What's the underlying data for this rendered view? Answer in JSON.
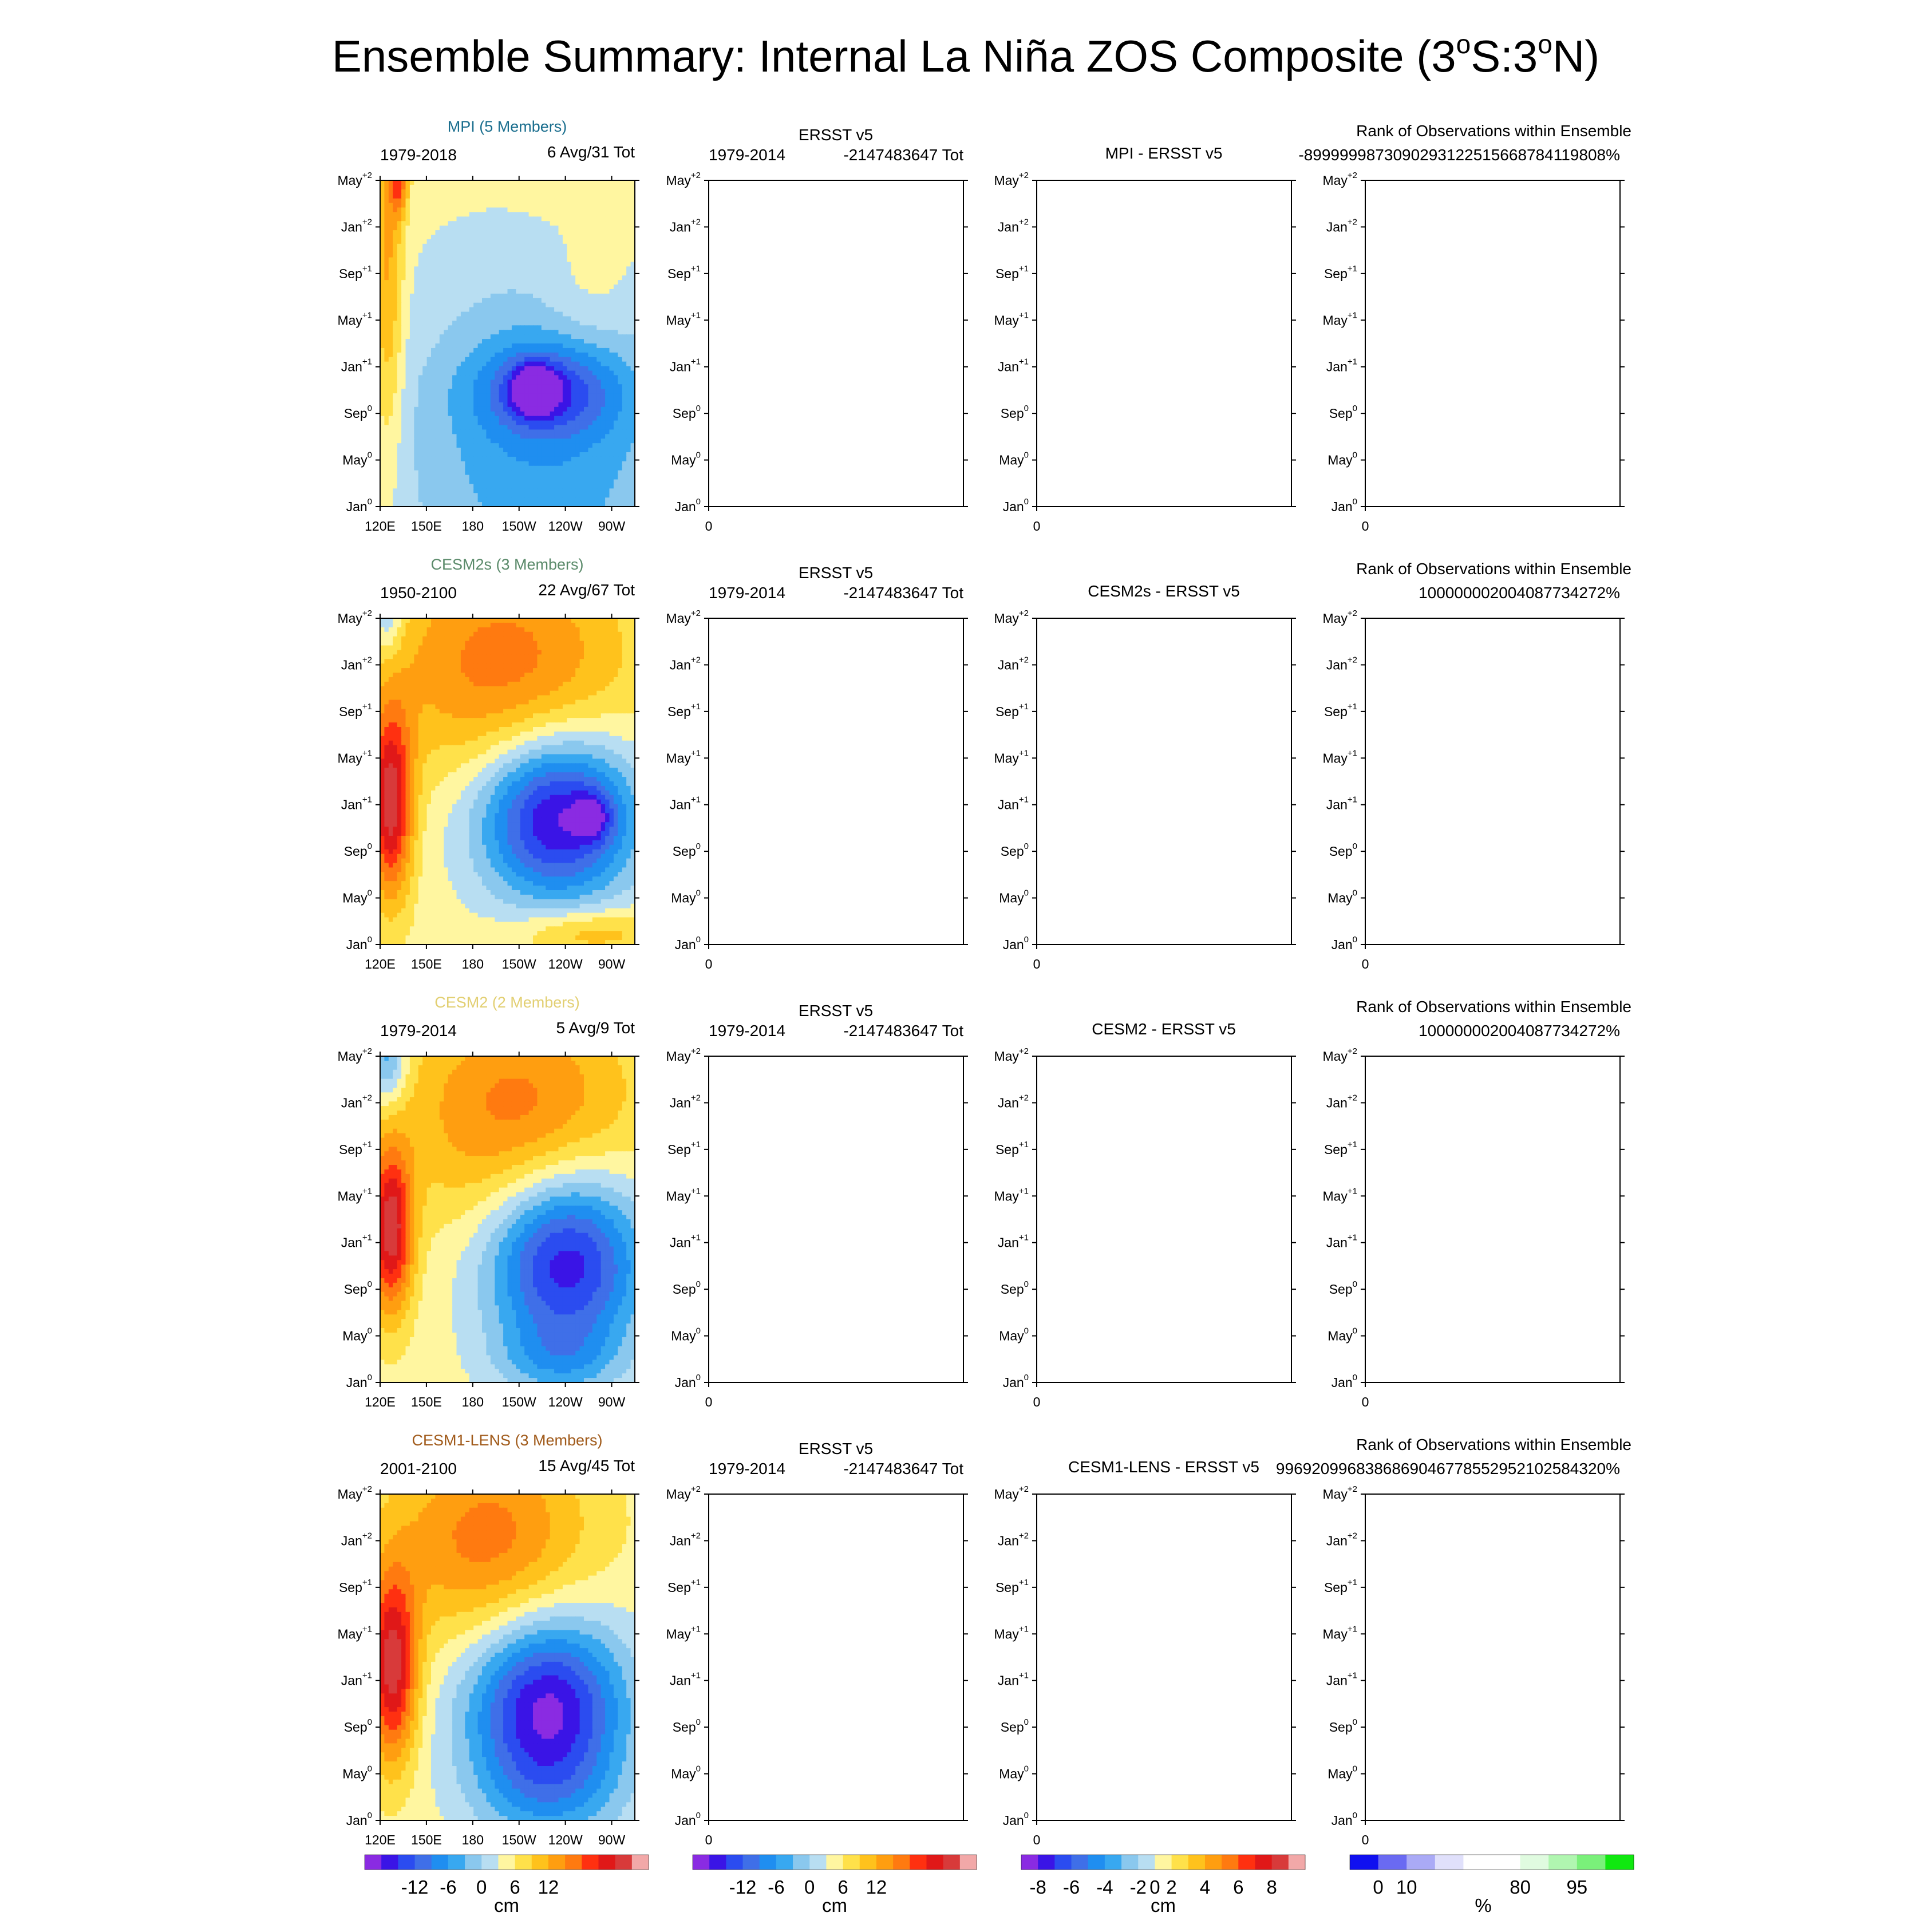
{
  "figure": {
    "title": "Ensemble Summary: Internal La Niña ZOS Composite (3°S:3°N)",
    "title_parts": [
      "Ensemble Summary: Internal La Niña ZOS Composite (3",
      "o",
      "S:3",
      "o",
      "N)"
    ]
  },
  "axes": {
    "y_ticks": [
      {
        "base": "May",
        "sup": "+2"
      },
      {
        "base": "Jan",
        "sup": "+2"
      },
      {
        "base": "Sep",
        "sup": "+1"
      },
      {
        "base": "May",
        "sup": "+1"
      },
      {
        "base": "Jan",
        "sup": "+1"
      },
      {
        "base": "Sep",
        "sup": "0"
      },
      {
        "base": "May",
        "sup": "0"
      },
      {
        "base": "Jan",
        "sup": "0"
      }
    ],
    "x_ticks_lon": [
      "120E",
      "150E",
      "180",
      "150W",
      "120W",
      "90W"
    ],
    "x_tick_zero": "0"
  },
  "rows": [
    {
      "model": {
        "label": "MPI (5 Members)",
        "color": "#1a6e8e",
        "period": "1979-2018",
        "count": "6 Avg/31 Tot"
      },
      "obs": {
        "label": "ERSST v5",
        "period": "1979-2014",
        "count": "-2147483647 Tot"
      },
      "diff": {
        "label": "MPI - ERSST v5"
      },
      "rank": {
        "label": "Rank of Observations within Ensemble",
        "value": "-89999998730902931225156687841198​08%"
      }
    },
    {
      "model": {
        "label": "CESM2s (3 Members)",
        "color": "#5a8a6a",
        "period": "1950-2100",
        "count": "22 Avg/67 Tot"
      },
      "obs": {
        "label": "ERSST v5",
        "period": "1979-2014",
        "count": "-2147483647 Tot"
      },
      "diff": {
        "label": "CESM2s - ERSST v5"
      },
      "rank": {
        "label": "Rank of Observations within Ensemble",
        "value": "1000000020040877342​72%"
      }
    },
    {
      "model": {
        "label": "CESM2 (2 Members)",
        "color": "#e2cf72",
        "period": "1979-2014",
        "count": "5 Avg/9 Tot"
      },
      "obs": {
        "label": "ERSST v5",
        "period": "1979-2014",
        "count": "-2147483647 Tot"
      },
      "diff": {
        "label": "CESM2 - ERSST v5"
      },
      "rank": {
        "label": "Rank of Observations within Ensemble",
        "value": "1000000020040877342​72%"
      }
    },
    {
      "model": {
        "label": "CESM1-LENS (3 Members)",
        "color": "#a05a1a",
        "period": "2001-2100",
        "count": "15 Avg/45 Tot"
      },
      "obs": {
        "label": "ERSST v5",
        "period": "1979-2014",
        "count": "-2147483647 Tot"
      },
      "diff": {
        "label": "CESM1-LENS - ERSST v5"
      },
      "rank": {
        "label": "Rank of Observations within Ensemble",
        "value": "99692099683868690467785529521025843​20%"
      }
    }
  ],
  "colorbars": [
    {
      "colors": [
        "#8a2be2",
        "#3a14e6",
        "#2b4cf0",
        "#3f6fe8",
        "#1f8ef0",
        "#38a8f0",
        "#8ac8ee",
        "#b8def2",
        "#fff6a0",
        "#ffe14a",
        "#ffc21c",
        "#ff9e10",
        "#ff7a10",
        "#ff3010",
        "#e01818",
        "#d83a3a",
        "#f2a8a8"
      ],
      "ticks": [
        "-12",
        "-6",
        "0",
        "6",
        "12"
      ],
      "unit": "cm"
    },
    {
      "colors": [
        "#8a2be2",
        "#3a14e6",
        "#2b4cf0",
        "#3f6fe8",
        "#1f8ef0",
        "#38a8f0",
        "#8ac8ee",
        "#b8def2",
        "#fff6a0",
        "#ffe14a",
        "#ffc21c",
        "#ff9e10",
        "#ff7a10",
        "#ff3010",
        "#e01818",
        "#d83a3a",
        "#f2a8a8"
      ],
      "ticks": [
        "-12",
        "-6",
        "0",
        "6",
        "12"
      ],
      "unit": "cm"
    },
    {
      "colors": [
        "#8a2be2",
        "#3a14e6",
        "#2b4cf0",
        "#3f6fe8",
        "#1f8ef0",
        "#38a8f0",
        "#8ac8ee",
        "#b8def2",
        "#fff6a0",
        "#ffe14a",
        "#ffc21c",
        "#ff9e10",
        "#ff7a10",
        "#ff3010",
        "#e01818",
        "#d83a3a",
        "#f2a8a8"
      ],
      "ticks": [
        "-8",
        "-6",
        "-4",
        "-2",
        "0",
        "2",
        "4",
        "6",
        "8"
      ],
      "unit": "cm"
    },
    {
      "colors": [
        "#1010f0",
        "#6a6af2",
        "#aaaaf6",
        "#e0e0fb",
        "#ffffff",
        "#ffffff",
        "#e0fbe0",
        "#b0f6b0",
        "#7af07a",
        "#10e810"
      ],
      "ticks": [
        "0",
        "10",
        "80",
        "95"
      ],
      "unit": "%"
    }
  ],
  "chart_data": [
    {
      "type": "heatmap",
      "title": "MPI (5 Members)",
      "subtitle": "1979-2018  6 Avg/31 Tot",
      "xlabel": "",
      "ylabel": "",
      "x": [
        "120E",
        "150E",
        "180",
        "150W",
        "120W",
        "90W"
      ],
      "y": [
        "Jan0",
        "May0",
        "Sep0",
        "Jan+1",
        "May+1",
        "Sep+1",
        "Jan+2",
        "May+2"
      ],
      "unit": "cm",
      "blobs": [
        {
          "lon": 125,
          "mon": 20,
          "rx": 10,
          "ry": 16,
          "v": 6
        },
        {
          "lon": 132,
          "mon": 28,
          "rx": 6,
          "ry": 3,
          "v": 8
        },
        {
          "lon": 230,
          "mon": 10,
          "rx": 45,
          "ry": 4,
          "v": -8
        },
        {
          "lon": 220,
          "mon": 10,
          "rx": 14,
          "ry": 2,
          "v": -11
        },
        {
          "lon": 225,
          "mon": 5,
          "rx": 95,
          "ry": 16,
          "v": -6.5
        },
        {
          "lon": 255,
          "mon": 18,
          "rx": 30,
          "ry": 6,
          "v": 2
        },
        {
          "lon": 255,
          "mon": 28.5,
          "rx": 50,
          "ry": 3,
          "v": 1.5
        },
        {
          "lon": 218,
          "mon": 31,
          "rx": 14,
          "ry": 1,
          "v": -3
        }
      ]
    },
    {
      "type": "heatmap",
      "title": "CESM2s (3 Members)",
      "subtitle": "1950-2100  22 Avg/67 Tot",
      "xlabel": "",
      "ylabel": "",
      "x": [
        "120E",
        "150E",
        "180",
        "150W",
        "120W",
        "90W"
      ],
      "y": [
        "Jan0",
        "May0",
        "Sep0",
        "Jan+1",
        "May+1",
        "Sep+1",
        "Jan+2",
        "May+2"
      ],
      "unit": "cm",
      "blobs": [
        {
          "lon": 127,
          "mon": 12,
          "rx": 14,
          "ry": 8,
          "v": 14
        },
        {
          "lon": 200,
          "mon": 24,
          "rx": 80,
          "ry": 10,
          "v": 8
        },
        {
          "lon": 235,
          "mon": 11,
          "rx": 50,
          "ry": 7,
          "v": -16
        },
        {
          "lon": 258,
          "mon": 11,
          "rx": 12,
          "ry": 2,
          "v": -6
        },
        {
          "lon": 255,
          "mon": 1,
          "rx": 45,
          "ry": 2,
          "v": 5
        },
        {
          "lon": 125,
          "mon": 29,
          "rx": 10,
          "ry": 4,
          "v": -6
        }
      ]
    },
    {
      "type": "heatmap",
      "title": "CESM2 (2 Members)",
      "subtitle": "1979-2014  5 Avg/9 Tot",
      "xlabel": "",
      "ylabel": "",
      "x": [
        "120E",
        "150E",
        "180",
        "150W",
        "120W",
        "90W"
      ],
      "y": [
        "Jan0",
        "May0",
        "Sep0",
        "Jan+1",
        "May+1",
        "Sep+1",
        "Jan+2",
        "May+2"
      ],
      "unit": "cm",
      "blobs": [
        {
          "lon": 127,
          "mon": 13,
          "rx": 14,
          "ry": 7,
          "v": 14
        },
        {
          "lon": 210,
          "mon": 23,
          "rx": 75,
          "ry": 10,
          "v": 8
        },
        {
          "lon": 240,
          "mon": 10.5,
          "rx": 50,
          "ry": 8,
          "v": -15
        },
        {
          "lon": 125,
          "mon": 28,
          "rx": 12,
          "ry": 4,
          "v": -7
        },
        {
          "lon": 235,
          "mon": 2,
          "rx": 40,
          "ry": 3,
          "v": -4
        }
      ]
    },
    {
      "type": "heatmap",
      "title": "CESM1-LENS (3 Members)",
      "subtitle": "2001-2100  15 Avg/45 Tot",
      "xlabel": "",
      "ylabel": "",
      "x": [
        "120E",
        "150E",
        "180",
        "150W",
        "120W",
        "90W"
      ],
      "y": [
        "Jan0",
        "May0",
        "Sep0",
        "Jan+1",
        "May+1",
        "Sep+1",
        "Jan+2",
        "May+2"
      ],
      "unit": "cm",
      "blobs": [
        {
          "lon": 128,
          "mon": 13,
          "rx": 16,
          "ry": 8,
          "v": 14
        },
        {
          "lon": 190,
          "mon": 24,
          "rx": 65,
          "ry": 9,
          "v": 8
        },
        {
          "lon": 228,
          "mon": 9.5,
          "rx": 50,
          "ry": 8,
          "v": -16
        },
        {
          "lon": 230,
          "mon": 2,
          "rx": 50,
          "ry": 4,
          "v": -3
        }
      ]
    }
  ]
}
